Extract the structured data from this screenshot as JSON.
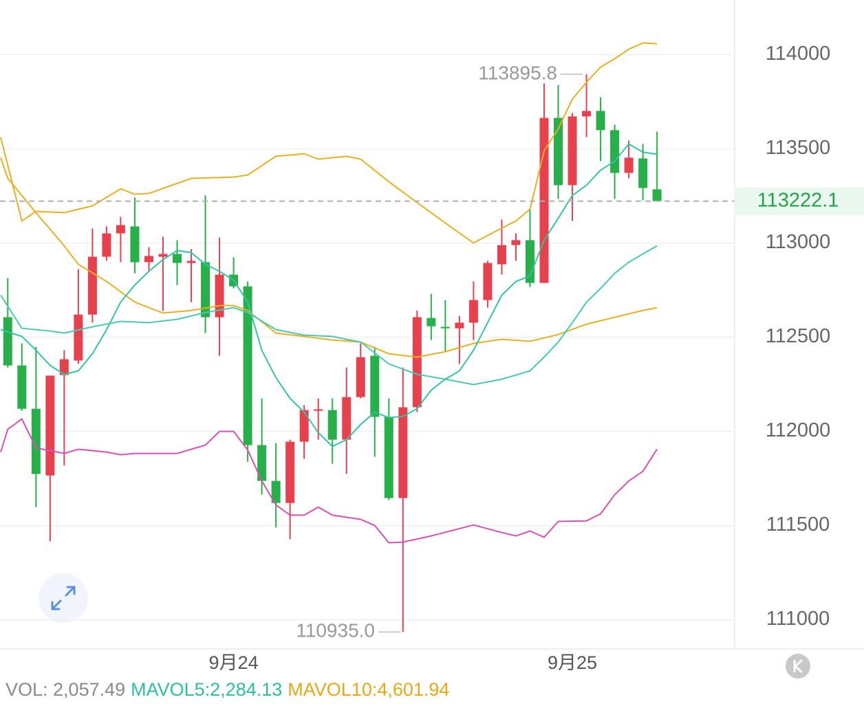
{
  "chart_data": {
    "type": "candlestick",
    "up_color": "#e8414e",
    "down_color": "#27b04a",
    "xlim": [
      -0.55,
      51.5
    ],
    "ylim": [
      110845,
      114290
    ],
    "yticks": [
      111000,
      111500,
      112000,
      112500,
      113000,
      113500,
      114000
    ],
    "xticks": [
      {
        "value": 16,
        "label": "9月24"
      },
      {
        "value": 40,
        "label": "9月25"
      }
    ],
    "grid": true,
    "open": [
      112606,
      112350,
      112120,
      111766,
      112299,
      112376,
      112620,
      112927,
      113051,
      113088,
      112898,
      112927,
      112942,
      112894,
      112898,
      112606,
      112832,
      112770,
      111927,
      111737,
      111620,
      111945,
      112109,
      112113,
      111956,
      112182,
      112401,
      112077,
      111646,
      112128,
      112602,
      112555,
      112547,
      112577,
      112697,
      112887,
      112989,
      113015,
      112788,
      113664,
      113307,
      113672,
      113701,
      113599,
      113372,
      113449,
      113285
    ],
    "high": [
      112814,
      112467,
      112449,
      112296,
      112431,
      112861,
      113077,
      113088,
      113139,
      113241,
      112978,
      113033,
      113015,
      112967,
      113252,
      113029,
      112923,
      112796,
      112175,
      111938,
      111956,
      112139,
      112175,
      112175,
      112339,
      112467,
      112449,
      112175,
      112339,
      112642,
      112730,
      112697,
      112613,
      112796,
      112905,
      113124,
      113051,
      113179,
      113847,
      113839,
      113690,
      113895.8,
      113774,
      113628,
      113544,
      113526,
      113591
    ],
    "low": [
      112339,
      112109,
      111598,
      111416,
      111818,
      112358,
      112577,
      112905,
      112898,
      112839,
      112850,
      112639,
      112777,
      112686,
      112522,
      112401,
      112759,
      111839,
      111664,
      111489,
      111427,
      111854,
      111956,
      111828,
      111774,
      112175,
      111865,
      111635,
      110935,
      112102,
      112485,
      112423,
      112358,
      112485,
      112657,
      112832,
      112905,
      112766,
      112788,
      113234,
      113117,
      113562,
      113434,
      113234,
      113343,
      113226,
      113222.1
    ],
    "close": [
      112350,
      112120,
      111774,
      112296,
      112383,
      112620,
      112927,
      113051,
      113095,
      112898,
      112931,
      112942,
      112894,
      112905,
      112606,
      112832,
      112770,
      111927,
      111737,
      111620,
      111945,
      112113,
      112117,
      111956,
      112182,
      112394,
      112077,
      111646,
      112128,
      112606,
      112558,
      112547,
      112577,
      112697,
      112894,
      112989,
      113015,
      112788,
      113664,
      113307,
      113672,
      113701,
      113599,
      113372,
      113453,
      113292,
      113222.1
    ],
    "lines": [
      {
        "color": "#e8b020",
        "x": [
          -0.5,
          1,
          2,
          4,
          6,
          8,
          9,
          10,
          13,
          16,
          17,
          19,
          21,
          22,
          24,
          25,
          27,
          29,
          31,
          33,
          34,
          36,
          37,
          38,
          39,
          40,
          41,
          42,
          43,
          44,
          45,
          46
        ],
        "values": [
          113562,
          113117,
          113168,
          113161,
          113197,
          113288,
          113259,
          113263,
          113343,
          113350,
          113361,
          113460,
          113474,
          113445,
          113460,
          113445,
          113325,
          113215,
          113106,
          113000,
          113040,
          113117,
          113179,
          113489,
          113606,
          113763,
          113854,
          113934,
          113978,
          114029,
          114062,
          114058
        ]
      },
      {
        "color": "#e8b020",
        "x": [
          -0.5,
          0,
          2,
          4,
          5,
          7,
          9,
          11,
          13,
          15,
          16,
          17,
          19,
          21,
          23,
          25,
          27,
          29,
          31,
          33,
          35,
          37,
          39,
          41,
          43,
          45,
          46
        ],
        "values": [
          113453,
          113343,
          113161,
          112985,
          112887,
          112796,
          112686,
          112628,
          112642,
          112668,
          112668,
          112642,
          112522,
          112504,
          112485,
          112474,
          112412,
          112394,
          112423,
          112467,
          112489,
          112478,
          112514,
          112569,
          112606,
          112642,
          112657
        ]
      },
      {
        "color": "#d94fb5",
        "x": [
          -0.5,
          0,
          1,
          2,
          4,
          5,
          7,
          8,
          9,
          12,
          14,
          15,
          16,
          17,
          18,
          19,
          20,
          21,
          22,
          23,
          25,
          26,
          27,
          28,
          30,
          33,
          35,
          36,
          37,
          38,
          39,
          41,
          42,
          43,
          44,
          45,
          46
        ],
        "values": [
          111890,
          112011,
          112066,
          111912,
          111883,
          111905,
          111890,
          111876,
          111883,
          111883,
          111927,
          112000,
          112000,
          111901,
          111737,
          111609,
          111555,
          111555,
          111598,
          111555,
          111533,
          111500,
          111409,
          111412,
          111445,
          111503,
          111463,
          111445,
          111471,
          111438,
          111522,
          111525,
          111562,
          111664,
          111737,
          111788,
          111905
        ]
      },
      {
        "color": "#34c3a6",
        "x": [
          -0.5,
          1,
          2,
          3,
          4,
          5,
          6,
          7,
          8,
          9,
          10,
          11,
          12,
          13,
          14,
          15,
          16,
          17,
          18,
          19,
          20,
          21,
          22,
          23,
          24,
          25,
          26,
          27,
          28,
          29,
          30,
          31,
          32,
          33,
          34,
          35,
          36,
          37,
          38,
          39,
          40,
          41,
          42,
          43,
          44,
          45,
          46
        ],
        "values": [
          112540,
          112504,
          112431,
          112350,
          112303,
          112321,
          112412,
          112540,
          112686,
          112777,
          112850,
          112912,
          112960,
          112949,
          112887,
          112850,
          112803,
          112686,
          112431,
          112285,
          112175,
          112102,
          111993,
          111920,
          111956,
          112037,
          112102,
          112073,
          112080,
          112120,
          112219,
          112277,
          112321,
          112431,
          112577,
          112723,
          112796,
          112825,
          113015,
          113131,
          113252,
          113307,
          113387,
          113434,
          113526,
          113482,
          113471
        ]
      },
      {
        "color": "#48c9b4",
        "x": [
          -0.5,
          1,
          3,
          4,
          6,
          8,
          10,
          12,
          14,
          16,
          17,
          19,
          21,
          23,
          25,
          27,
          29,
          31,
          33,
          35,
          37,
          38,
          39,
          40,
          41,
          42,
          43,
          44,
          45,
          46
        ],
        "values": [
          112723,
          112547,
          112533,
          112522,
          112555,
          112584,
          112577,
          112595,
          112631,
          112657,
          112631,
          112540,
          112511,
          112504,
          112474,
          112358,
          112303,
          112277,
          112248,
          112277,
          112321,
          112394,
          112474,
          112577,
          112686,
          112759,
          112839,
          112898,
          112942,
          112985
        ]
      }
    ],
    "last_price": {
      "value": 113222.1,
      "label": "113222.1"
    },
    "max_label": {
      "value": 113895.8,
      "label": "113895.8"
    },
    "min_label": {
      "value": 110935,
      "label": "110935.0"
    },
    "footer": [
      {
        "text": "VOL: 2,057.49",
        "color": "#8a8a8a"
      },
      {
        "text": "MAVOL5:2,284.13",
        "color": "#2ebfa0"
      },
      {
        "text": "MAVOL10:4,601.94",
        "color": "#e6a817"
      }
    ]
  }
}
